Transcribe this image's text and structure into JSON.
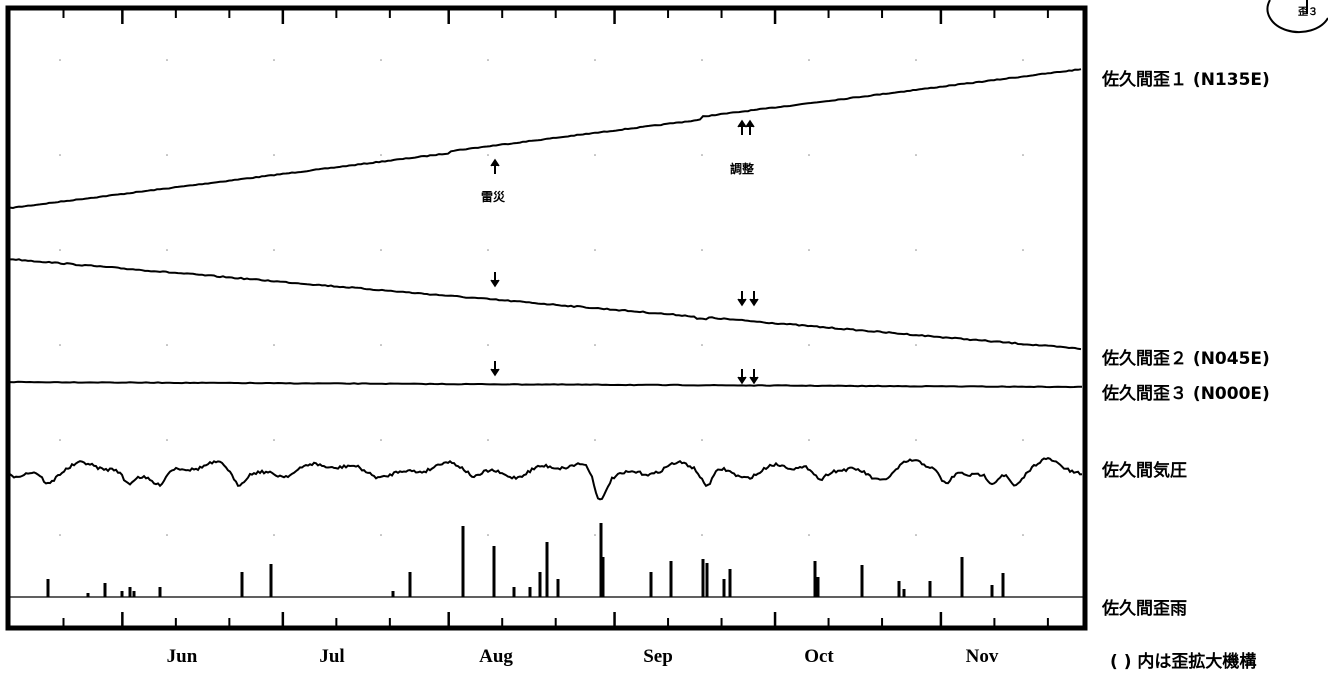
{
  "chart_data": {
    "type": "line",
    "x_axis": {
      "tick_labels": [
        "Jun",
        "Jul",
        "Aug",
        "Sep",
        "Oct",
        "Nov"
      ]
    },
    "series": [
      {
        "name": "佐久間歪１ (N135E)",
        "type": "line",
        "trend": "increasing"
      },
      {
        "name": "佐久間歪２ (N045E)",
        "type": "line",
        "trend": "decreasing"
      },
      {
        "name": "佐久間歪３ (N000E)",
        "type": "line",
        "trend": "flat"
      },
      {
        "name": "佐久間気圧",
        "type": "line",
        "trend": "fluctuating"
      },
      {
        "name": "佐久間歪雨",
        "type": "bar",
        "trend": "spiky"
      }
    ],
    "annotations": [
      {
        "label": "雷災",
        "month": "Aug",
        "day": 1
      },
      {
        "label": "調整",
        "month": "Sep",
        "day": 17
      }
    ],
    "footnote": "( ) 内は歪拡大機構",
    "corner_label": "歪３"
  }
}
